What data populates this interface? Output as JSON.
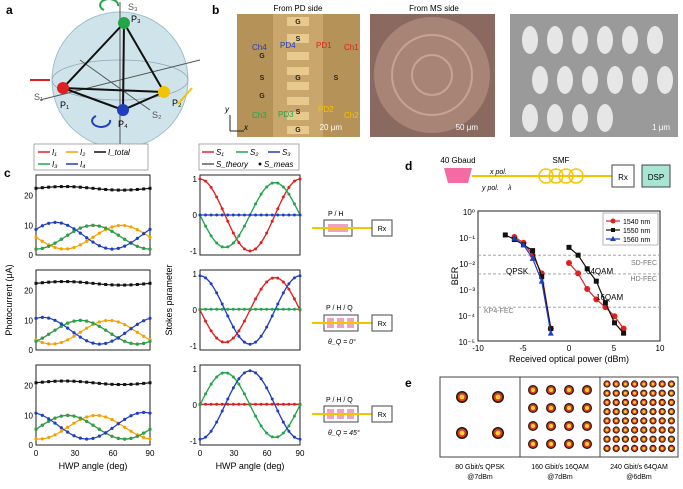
{
  "panels": {
    "a": {
      "label": "a",
      "axes": {
        "s1": "S₁",
        "s2": "S₂",
        "s3": "S₃"
      },
      "points": [
        "P₁",
        "P₂",
        "P₃",
        "P₄"
      ],
      "colors": {
        "p1": "#e02020",
        "p2": "#f5c400",
        "p3": "#22a64a",
        "p4": "#1f3fbf"
      }
    },
    "b": {
      "label": "b",
      "titles": [
        "From PD side",
        "From MS side"
      ],
      "channels": [
        "Ch1",
        "Ch2",
        "Ch3",
        "Ch4"
      ],
      "pds": [
        "PD1",
        "PD2",
        "PD3",
        "PD4"
      ],
      "pads": [
        "G",
        "S",
        "G",
        "S",
        "G",
        "S",
        "G",
        "S",
        "G"
      ],
      "axis_x": "x",
      "axis_y": "y",
      "scalebars": [
        "20 μm",
        "50 μm",
        "1 μm"
      ]
    },
    "c": {
      "label": "c",
      "ylabel_left": "Photocurrent (μA)",
      "ylabel_right": "Stokes parameter",
      "xlabel": "HWP angle (deg)",
      "legend_left": [
        "I₁",
        "I₂",
        "I₃",
        "I₄",
        "I_total"
      ],
      "legend_right": [
        "S₁",
        "S₂",
        "S₃"
      ],
      "legend_right2": [
        "S_theory",
        "S_meas"
      ],
      "setups": [
        {
          "text": "P / H",
          "box": "Rx"
        },
        {
          "text": "P / H / Q",
          "box": "Rx",
          "angle": "θ_Q = 0°"
        },
        {
          "text": "P / H / Q",
          "box": "Rx",
          "angle": "θ_Q = 45°"
        }
      ],
      "left_ticks_y": [
        "0",
        "5",
        "10",
        "15",
        "20",
        "25"
      ],
      "right_ticks_y": [
        "-1",
        "0",
        "1"
      ],
      "ticks_x": [
        "0",
        "30",
        "60",
        "90"
      ]
    },
    "d": {
      "label": "d",
      "baud": "40 Gbaud",
      "smf": "SMF",
      "xpol": "x pol.",
      "ypol": "y pol.",
      "lambda": "λ",
      "rx": "Rx",
      "dsp": "DSP",
      "ylabel": "BER",
      "xlabel": "Received optical power (dBm)",
      "legend": [
        "1540 nm",
        "1550 nm",
        "1560 nm"
      ],
      "fec": [
        "SD-FEC",
        "HD-FEC",
        "KP4-FEC"
      ],
      "mods": [
        "QPSK",
        "64QAM",
        "16QAM"
      ],
      "ticks_x": [
        "-10",
        "-5",
        "0",
        "5",
        "10"
      ],
      "ticks_y": [
        "10⁰",
        "10⁻¹",
        "10⁻²",
        "10⁻³",
        "10⁻⁴",
        "10⁻⁵"
      ]
    },
    "e": {
      "label": "e",
      "captions": [
        {
          "line1": "80 Gbit/s QPSK",
          "line2": "@7dBm"
        },
        {
          "line1": "160 Gbit/s 16QAM",
          "line2": "@7dBm"
        },
        {
          "line1": "240 Gbit/s 64QAM",
          "line2": "@6dBm"
        }
      ]
    }
  },
  "chart_data": [
    {
      "type": "line",
      "ylabel": "Photocurrent (μA)",
      "xlabel": "HWP angle (deg)",
      "xlim": [
        0,
        90
      ],
      "ylim": [
        0,
        27
      ],
      "series": [
        {
          "name": "I₁",
          "color": "#e02020",
          "x": [
            0,
            15,
            30,
            45,
            60,
            75,
            90
          ],
          "y": [
            2,
            6,
            10,
            6,
            2,
            6,
            10
          ]
        },
        {
          "name": "I₂",
          "color": "#f5a000",
          "x": [
            0,
            15,
            30,
            45,
            60,
            75,
            90
          ],
          "y": [
            6,
            10,
            6,
            2,
            6,
            10,
            6
          ]
        },
        {
          "name": "I₃",
          "color": "#22a64a",
          "x": [
            0,
            15,
            30,
            45,
            60,
            75,
            90
          ],
          "y": [
            10,
            6,
            2,
            6,
            10,
            6,
            2
          ]
        },
        {
          "name": "I₄",
          "color": "#1f3fbf",
          "x": [
            0,
            15,
            30,
            45,
            60,
            75,
            90
          ],
          "y": [
            11,
            8,
            4,
            3,
            6,
            9,
            12
          ]
        },
        {
          "name": "I_total",
          "color": "#111111",
          "x": [
            0,
            15,
            30,
            45,
            60,
            75,
            90
          ],
          "y": [
            22.5,
            23,
            23.5,
            23.2,
            23,
            22.8,
            22.5
          ]
        }
      ]
    },
    {
      "type": "scatter",
      "xlabel": "Received optical power (dBm)",
      "ylabel": "BER",
      "xlim": [
        -10,
        10
      ],
      "ylim_log10": [
        -5,
        0
      ],
      "series": [
        {
          "name": "1540 nm",
          "color": "#e02020",
          "x": [
            -6,
            -5,
            -4,
            -3,
            -2,
            0,
            1,
            2,
            3,
            4,
            5,
            6
          ],
          "y": [
            0.1,
            0.06,
            0.02,
            0.004,
            3e-05,
            0.01,
            0.004,
            0.001,
            0.0004,
            0.0002,
            9e-05,
            3e-05
          ]
        },
        {
          "name": "1550 nm",
          "color": "#111111",
          "x": [
            -7,
            -6,
            -5,
            -4,
            -3,
            -2,
            0,
            1,
            2,
            3,
            4,
            5,
            6
          ],
          "y": [
            0.12,
            0.08,
            0.05,
            0.03,
            0.003,
            3e-05,
            0.04,
            0.02,
            0.006,
            0.002,
            0.0003,
            5e-05,
            2e-05
          ]
        },
        {
          "name": "1560 nm",
          "color": "#1f3fbf",
          "x": [
            -6,
            -5,
            -4,
            -3,
            -2
          ],
          "y": [
            0.09,
            0.05,
            0.015,
            0.002,
            2e-05
          ]
        }
      ]
    }
  ]
}
